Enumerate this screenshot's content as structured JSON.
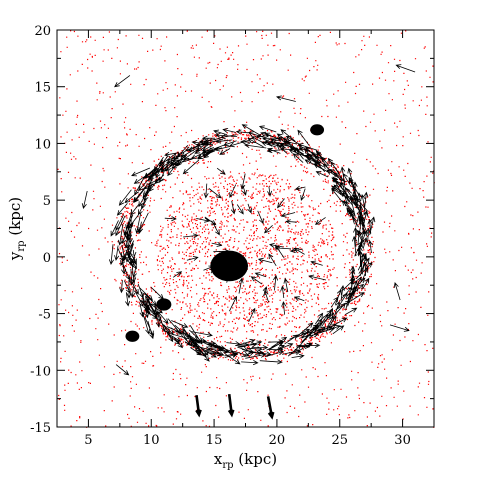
{
  "chart_data": {
    "type": "scatter",
    "title": "",
    "xlabel": {
      "main": "x",
      "sub": "rp",
      "unit": " (kpc)"
    },
    "ylabel": {
      "main": "y",
      "sub": "rp",
      "unit": " (kpc)"
    },
    "xlim": [
      2.5,
      32.5
    ],
    "ylim": [
      -15,
      20
    ],
    "xticks": [
      "5",
      "10",
      "15",
      "20",
      "25",
      "30"
    ],
    "yticks": [
      "-15",
      "-10",
      "-5",
      "0",
      "5",
      "10",
      "15",
      "20"
    ],
    "xtick_values": [
      5,
      10,
      15,
      20,
      25,
      30
    ],
    "ytick_values": [
      -15,
      -10,
      -5,
      0,
      5,
      10,
      15,
      20
    ],
    "grid": false,
    "legend": "none",
    "colors": {
      "particles": "#ff0000",
      "velocity_vectors": "#000000",
      "axes": "#000000"
    },
    "series": [
      {
        "description_only_for_renderer": false,
        "kind": "ring_particles",
        "center": [
          17.5,
          1.0
        ],
        "radius": 9.8,
        "values_hint": "dense red particle ring"
      }
    ],
    "particle_components": {
      "ring": {
        "center": [
          17.5,
          1.0
        ],
        "radius": 9.8,
        "width": 0.6,
        "count": 2600
      },
      "inner_disk": {
        "center": [
          17.5,
          0.5
        ],
        "radius": 7.2,
        "count": 1400
      },
      "background": {
        "count": 1100
      },
      "nucleus": {
        "center": [
          16.2,
          -0.8
        ],
        "radius": 1.5
      },
      "clumps": [
        {
          "center": [
            8.5,
            -7.0
          ],
          "radius": 0.55
        },
        {
          "center": [
            11.0,
            -4.2
          ],
          "radius": 0.6
        },
        {
          "center": [
            23.2,
            11.2
          ],
          "radius": 0.55
        }
      ]
    },
    "arrow_components": {
      "ring_count": 420,
      "inner_count": 55,
      "outer": [
        {
          "x": 8.3,
          "y": 16.0,
          "dx": -1.2,
          "dy": -1.0
        },
        {
          "x": 31.0,
          "y": 16.3,
          "dx": -1.5,
          "dy": 0.6
        },
        {
          "x": 21.5,
          "y": 13.7,
          "dx": -1.5,
          "dy": 0.4
        },
        {
          "x": 4.9,
          "y": 5.8,
          "dx": -0.3,
          "dy": -1.5
        },
        {
          "x": 7.2,
          "y": -9.5,
          "dx": 1.0,
          "dy": -0.9
        },
        {
          "x": 29.8,
          "y": -3.8,
          "dx": -0.4,
          "dy": 1.5
        },
        {
          "x": 29.0,
          "y": -6.0,
          "dx": 1.5,
          "dy": -0.5
        },
        {
          "x": 13.6,
          "y": -12.2,
          "dx": 0.2,
          "dy": -1.7,
          "bold": true
        },
        {
          "x": 16.2,
          "y": -12.1,
          "dx": 0.2,
          "dy": -1.8,
          "bold": true
        },
        {
          "x": 19.3,
          "y": -12.3,
          "dx": 0.3,
          "dy": -1.8,
          "bold": true
        }
      ]
    }
  }
}
